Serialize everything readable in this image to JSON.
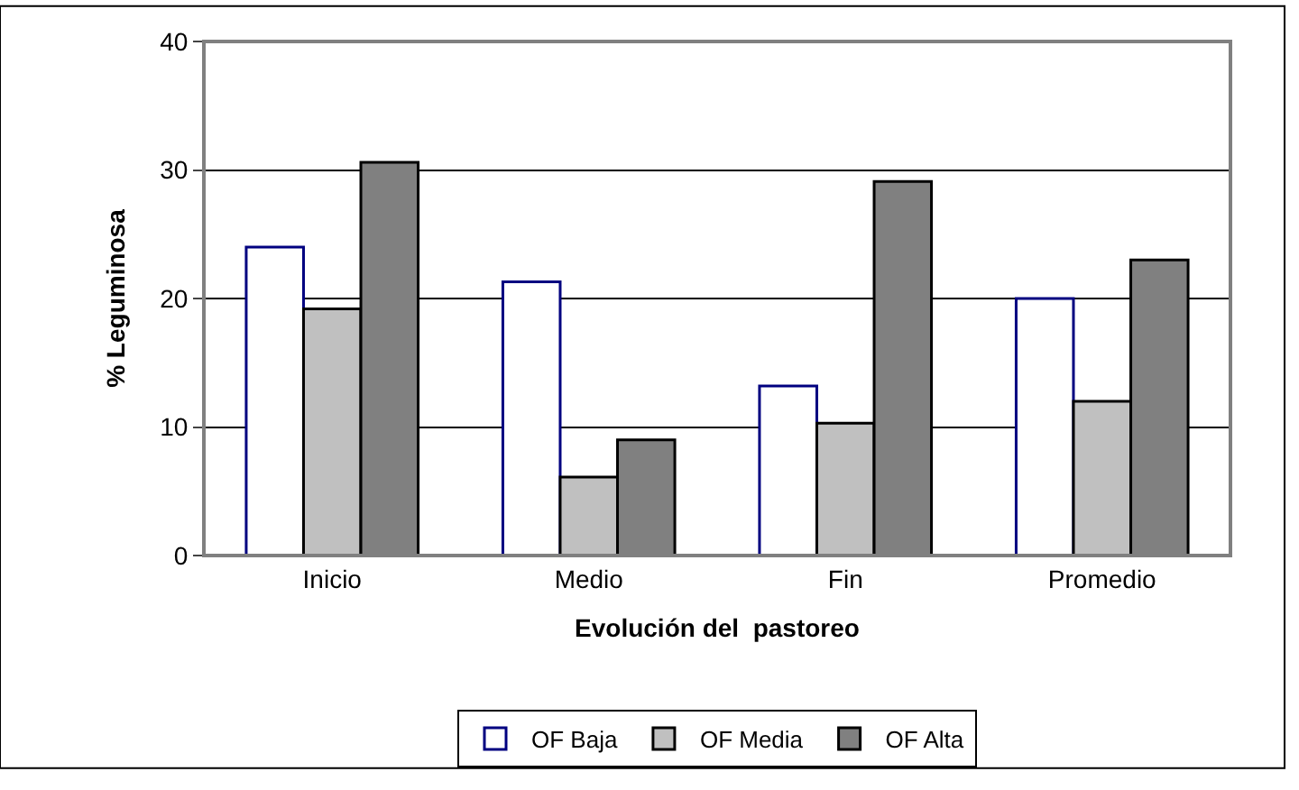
{
  "chart_data": {
    "type": "bar",
    "xlabel": "Evolución del  pastoreo",
    "ylabel": "% Leguminosa",
    "categories": [
      "Inicio",
      "Medio",
      "Fin",
      "Promedio"
    ],
    "series": [
      {
        "name": "OF Baja",
        "color": "#ffffff",
        "values": [
          24.0,
          21.3,
          13.2,
          20.0
        ]
      },
      {
        "name": "OF Media",
        "color": "#c0c0c0",
        "values": [
          19.2,
          6.1,
          10.3,
          12.0
        ]
      },
      {
        "name": "OF Alta",
        "color": "#808080",
        "values": [
          30.6,
          9.0,
          29.1,
          23.0
        ]
      }
    ],
    "ylim": [
      0,
      40
    ],
    "yticks": [
      0,
      10,
      20,
      30,
      40
    ],
    "grid": "y",
    "legend": "bottom"
  }
}
